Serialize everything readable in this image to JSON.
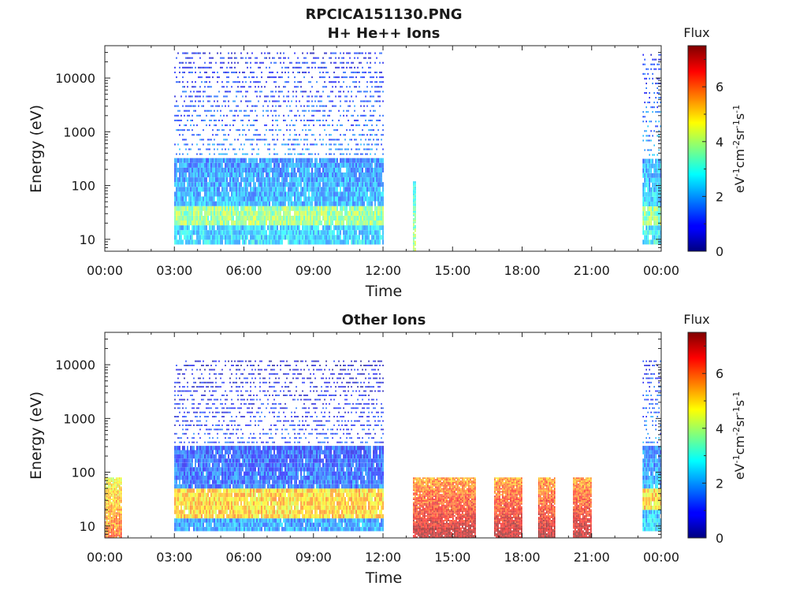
{
  "page": {
    "title": "RPCICA151130.PNG"
  },
  "chart_data": [
    {
      "type": "heatmap",
      "title": "H+ He++ Ions",
      "xlabel": "Time",
      "ylabel": "Energy (eV)",
      "x_ticks": [
        "00:00",
        "03:00",
        "06:00",
        "09:00",
        "12:00",
        "15:00",
        "18:00",
        "21:00",
        "00:00"
      ],
      "x_range_hours": [
        0,
        24
      ],
      "y_scale": "log",
      "y_ticks": [
        "10",
        "100",
        "1000",
        "10000"
      ],
      "y_tick_values": [
        10,
        100,
        1000,
        10000
      ],
      "y_range": [
        6,
        40000
      ],
      "colorbar": {
        "title": "Flux",
        "label": "eV-1cm-2sr-1s-1",
        "range": [
          0,
          7.5
        ],
        "ticks": [
          "0",
          "2",
          "4",
          "6"
        ],
        "colormap": "jet"
      },
      "regions": [
        {
          "start": 3.0,
          "end": 12.0,
          "emin": 8,
          "emax": 30000,
          "flux_low": 0.8,
          "flux_high": 2.5,
          "band_emin": 18,
          "band_emax": 45,
          "band_flux": 3.8
        },
        {
          "start": 13.3,
          "end": 13.4,
          "emin": 6,
          "emax": 120,
          "flux_low": 3.0,
          "flux_high": 4.0
        },
        {
          "start": 23.2,
          "end": 24.0,
          "emin": 8,
          "emax": 28000,
          "flux_low": 1.0,
          "flux_high": 2.8,
          "band_emin": 20,
          "band_emax": 45,
          "band_flux": 3.6
        }
      ]
    },
    {
      "type": "heatmap",
      "title": "Other Ions",
      "xlabel": "Time",
      "ylabel": "Energy (eV)",
      "x_ticks": [
        "00:00",
        "03:00",
        "06:00",
        "09:00",
        "12:00",
        "15:00",
        "18:00",
        "21:00",
        "00:00"
      ],
      "x_range_hours": [
        0,
        24
      ],
      "y_scale": "log",
      "y_ticks": [
        "10",
        "100",
        "1000",
        "10000"
      ],
      "y_tick_values": [
        10,
        100,
        1000,
        10000
      ],
      "y_range": [
        6,
        40000
      ],
      "colorbar": {
        "title": "Flux",
        "label": "eV-1cm-2sr-1s-1",
        "range": [
          0,
          7.5
        ],
        "ticks": [
          "0",
          "2",
          "4",
          "6"
        ],
        "colormap": "jet"
      },
      "regions": [
        {
          "start": 0.0,
          "end": 0.7,
          "emin": 6,
          "emax": 80,
          "flux_low": 4.5,
          "flux_high": 6.0
        },
        {
          "start": 3.0,
          "end": 12.0,
          "emin": 8,
          "emax": 12000,
          "flux_low": 0.5,
          "flux_high": 2.0,
          "band_emin": 15,
          "band_emax": 50,
          "band_flux": 5.0
        },
        {
          "start": 13.3,
          "end": 16.0,
          "emin": 6,
          "emax": 80,
          "flux_low": 5.5,
          "flux_high": 7.2
        },
        {
          "start": 16.8,
          "end": 18.0,
          "emin": 6,
          "emax": 80,
          "flux_low": 5.5,
          "flux_high": 7.2
        },
        {
          "start": 18.7,
          "end": 19.4,
          "emin": 6,
          "emax": 80,
          "flux_low": 5.5,
          "flux_high": 7.2
        },
        {
          "start": 20.2,
          "end": 21.0,
          "emin": 6,
          "emax": 80,
          "flux_low": 5.5,
          "flux_high": 7.2
        },
        {
          "start": 23.2,
          "end": 24.0,
          "emin": 8,
          "emax": 12000,
          "flux_low": 1.0,
          "flux_high": 2.5,
          "band_emin": 20,
          "band_emax": 50,
          "band_flux": 5.0
        }
      ]
    }
  ]
}
